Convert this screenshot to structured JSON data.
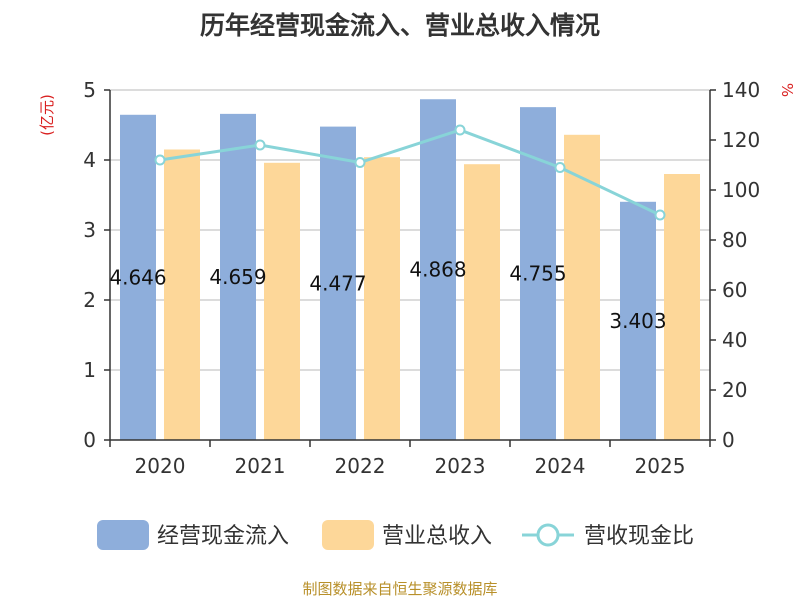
{
  "chart_data": {
    "type": "bar",
    "title": "历年经营现金流入、营业总收入情况",
    "categories": [
      "2020",
      "2021",
      "2022",
      "2023",
      "2024",
      "2025"
    ],
    "series": [
      {
        "name": "经营现金流入",
        "type": "bar",
        "axis": "left",
        "color": "#8eaedb",
        "values": [
          4.646,
          4.659,
          4.477,
          4.868,
          4.755,
          3.403
        ],
        "labels": [
          "4.646",
          "4.659",
          "4.477",
          "4.868",
          "4.755",
          "3.403"
        ]
      },
      {
        "name": "营业总收入",
        "type": "bar",
        "axis": "left",
        "color": "#fdd799",
        "values": [
          4.15,
          3.96,
          4.04,
          3.94,
          4.36,
          3.8
        ]
      },
      {
        "name": "营收现金比",
        "type": "line",
        "axis": "right",
        "color": "#88d4d8",
        "values": [
          112,
          118,
          111,
          124,
          109,
          90
        ]
      }
    ],
    "left_axis": {
      "unit": "(亿元)",
      "ylim": [
        0,
        5
      ],
      "ticks": [
        "0",
        "1",
        "2",
        "3",
        "4",
        "5"
      ]
    },
    "right_axis": {
      "unit": "%",
      "ylim": [
        0,
        140
      ],
      "ticks": [
        "0",
        "20",
        "40",
        "60",
        "80",
        "100",
        "120",
        "140"
      ]
    },
    "grid": true,
    "legend_position": "bottom"
  },
  "source": "制图数据来自恒生聚源数据库"
}
